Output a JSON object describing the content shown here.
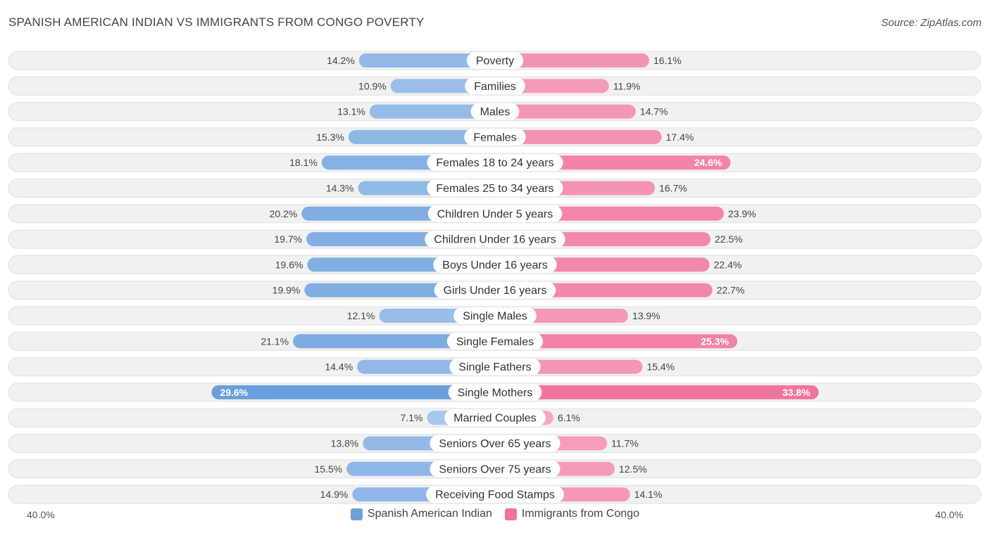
{
  "title": "SPANISH AMERICAN INDIAN VS IMMIGRANTS FROM CONGO POVERTY",
  "source": "Source: ZipAtlas.com",
  "axis": {
    "left_label": "40.0%",
    "right_label": "40.0%"
  },
  "colors": {
    "left_strong": "#6a9fdc",
    "left_light": "#a9c8ee",
    "right_strong": "#f0759c",
    "right_light": "#f6a8c2",
    "row_bg": "#f1f1f1",
    "row_border": "#e0e0e0"
  },
  "legend": [
    {
      "label": "Spanish American Indian",
      "color": "#6f9fdb"
    },
    {
      "label": "Immigrants from Congo",
      "color": "#f07199"
    }
  ],
  "chart_data": {
    "type": "bar",
    "orientation": "horizontal-diverging",
    "title": "SPANISH AMERICAN INDIAN VS IMMIGRANTS FROM CONGO POVERTY",
    "unit": "%",
    "xlim": [
      -40,
      40
    ],
    "categories": [
      "Poverty",
      "Families",
      "Males",
      "Females",
      "Females 18 to 24 years",
      "Females 25 to 34 years",
      "Children Under 5 years",
      "Children Under 16 years",
      "Boys Under 16 years",
      "Girls Under 16 years",
      "Single Males",
      "Single Females",
      "Single Fathers",
      "Single Mothers",
      "Married Couples",
      "Seniors Over 65 years",
      "Seniors Over 75 years",
      "Receiving Food Stamps"
    ],
    "series": [
      {
        "name": "Spanish American Indian",
        "side": "left",
        "values": [
          14.2,
          10.9,
          13.1,
          15.3,
          18.1,
          14.3,
          20.2,
          19.7,
          19.6,
          19.9,
          12.1,
          21.1,
          14.4,
          29.6,
          7.1,
          13.8,
          15.5,
          14.9
        ],
        "labels": [
          "14.2%",
          "10.9%",
          "13.1%",
          "15.3%",
          "18.1%",
          "14.3%",
          "20.2%",
          "19.7%",
          "19.6%",
          "19.9%",
          "12.1%",
          "21.1%",
          "14.4%",
          "29.6%",
          "7.1%",
          "13.8%",
          "15.5%",
          "14.9%"
        ]
      },
      {
        "name": "Immigrants from Congo",
        "side": "right",
        "values": [
          16.1,
          11.9,
          14.7,
          17.4,
          24.6,
          16.7,
          23.9,
          22.5,
          22.4,
          22.7,
          13.9,
          25.3,
          15.4,
          33.8,
          6.1,
          11.7,
          12.5,
          14.1
        ],
        "labels": [
          "16.1%",
          "11.9%",
          "14.7%",
          "17.4%",
          "24.6%",
          "16.7%",
          "23.9%",
          "22.5%",
          "22.4%",
          "22.7%",
          "13.9%",
          "25.3%",
          "15.4%",
          "33.8%",
          "6.1%",
          "11.7%",
          "12.5%",
          "14.1%"
        ]
      }
    ],
    "legend_position": "bottom-center"
  }
}
